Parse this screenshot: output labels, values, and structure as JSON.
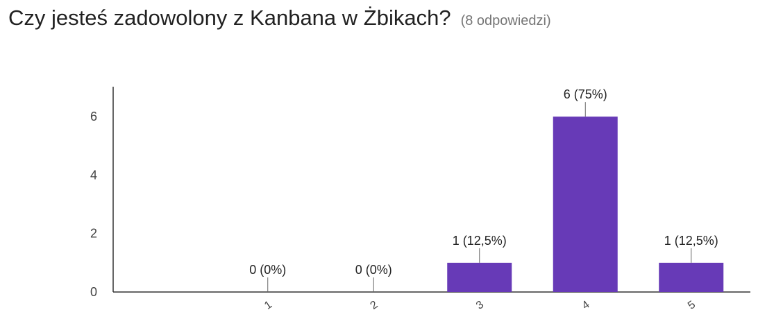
{
  "question": {
    "title": "Czy jesteś zadowolony z Kanbana w Żbikach?",
    "response_count": "(8 odpowiedzi)"
  },
  "colors": {
    "bar": "#673ab7",
    "axis": "#333333",
    "label": "#222222",
    "tick": "#444444"
  },
  "chart_data": {
    "type": "bar",
    "categories": [
      "1",
      "2",
      "3",
      "4",
      "5"
    ],
    "values": [
      0,
      0,
      1,
      6,
      1
    ],
    "data_labels": [
      "0 (0%)",
      "0 (0%)",
      "1 (12,5%)",
      "6 (75%)",
      "1 (12,5%)"
    ],
    "y_ticks": [
      "0",
      "2",
      "4",
      "6"
    ],
    "ylim": [
      0,
      7
    ],
    "title": "",
    "xlabel": "",
    "ylabel": "",
    "grid": false,
    "legend": "none"
  }
}
